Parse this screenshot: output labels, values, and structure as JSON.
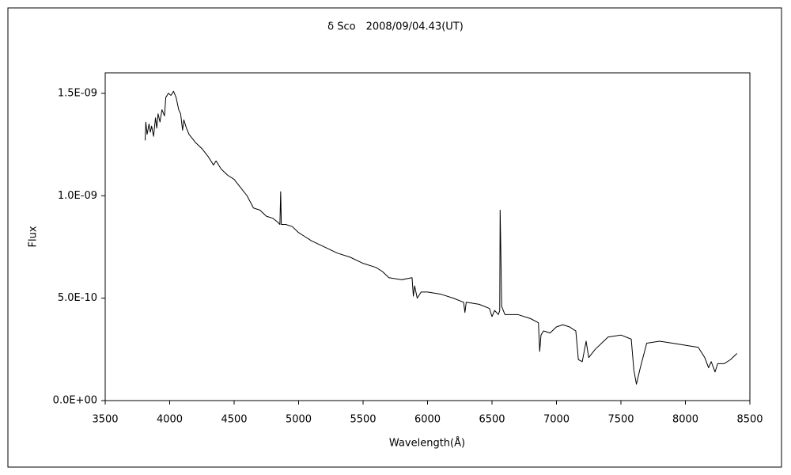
{
  "chart_data": {
    "type": "line",
    "title": "δ Sco　2008/09/04.43(UT)",
    "x_label": "Wavelength(Å)",
    "y_label": "Flux",
    "color": "#000000",
    "xlim": [
      3500,
      8500
    ],
    "xticks": [
      3500,
      4000,
      4500,
      5000,
      5500,
      6000,
      6500,
      7000,
      7500,
      8000,
      8500
    ],
    "ylim": [
      0,
      1.6e-09
    ],
    "yticks": [
      {
        "value": 0,
        "label": "0.0E+00"
      },
      {
        "value": 5e-10,
        "label": "5.0E-10"
      },
      {
        "value": 1e-09,
        "label": "1.0E-09"
      },
      {
        "value": 1.5e-09,
        "label": "1.5E-09"
      }
    ],
    "x": [
      3810,
      3815,
      3825,
      3840,
      3850,
      3860,
      3875,
      3890,
      3900,
      3910,
      3925,
      3940,
      3960,
      3970,
      3990,
      4010,
      4030,
      4050,
      4070,
      4085,
      4100,
      4110,
      4130,
      4150,
      4200,
      4250,
      4300,
      4340,
      4360,
      4400,
      4450,
      4500,
      4550,
      4600,
      4650,
      4700,
      4750,
      4800,
      4840,
      4855,
      4861,
      4866,
      4900,
      4950,
      5000,
      5050,
      5100,
      5200,
      5300,
      5400,
      5500,
      5600,
      5650,
      5700,
      5800,
      5880,
      5890,
      5900,
      5920,
      5950,
      6000,
      6100,
      6200,
      6280,
      6290,
      6300,
      6400,
      6480,
      6500,
      6520,
      6550,
      6560,
      6563,
      6568,
      6575,
      6600,
      6700,
      6800,
      6860,
      6870,
      6880,
      6900,
      6950,
      7000,
      7050,
      7100,
      7150,
      7170,
      7200,
      7230,
      7250,
      7300,
      7400,
      7500,
      7580,
      7600,
      7620,
      7650,
      7700,
      7800,
      7900,
      8000,
      8100,
      8150,
      8180,
      8200,
      8230,
      8250,
      8300,
      8350,
      8400
    ],
    "values": [
      1.27e-09,
      1.36e-09,
      1.3e-09,
      1.35e-09,
      1.31e-09,
      1.34e-09,
      1.29e-09,
      1.38e-09,
      1.33e-09,
      1.4e-09,
      1.36e-09,
      1.42e-09,
      1.39e-09,
      1.48e-09,
      1.5e-09,
      1.49e-09,
      1.51e-09,
      1.48e-09,
      1.42e-09,
      1.4e-09,
      1.32e-09,
      1.37e-09,
      1.33e-09,
      1.3e-09,
      1.26e-09,
      1.23e-09,
      1.19e-09,
      1.15e-09,
      1.17e-09,
      1.13e-09,
      1.1e-09,
      1.08e-09,
      1.04e-09,
      1e-09,
      9.4e-10,
      9.3e-10,
      9e-10,
      8.9e-10,
      8.7e-10,
      8.6e-10,
      1.02e-09,
      8.6e-10,
      8.6e-10,
      8.5e-10,
      8.2e-10,
      8e-10,
      7.8e-10,
      7.5e-10,
      7.2e-10,
      7e-10,
      6.7e-10,
      6.5e-10,
      6.3e-10,
      6e-10,
      5.9e-10,
      6e-10,
      5.1e-10,
      5.6e-10,
      5e-10,
      5.3e-10,
      5.3e-10,
      5.2e-10,
      5e-10,
      4.8e-10,
      4.3e-10,
      4.8e-10,
      4.7e-10,
      4.5e-10,
      4.1e-10,
      4.4e-10,
      4.2e-10,
      4.4e-10,
      9.3e-10,
      7.5e-10,
      4.6e-10,
      4.2e-10,
      4.2e-10,
      4e-10,
      3.8e-10,
      2.4e-10,
      3.2e-10,
      3.4e-10,
      3.3e-10,
      3.6e-10,
      3.7e-10,
      3.6e-10,
      3.4e-10,
      2e-10,
      1.9e-10,
      2.9e-10,
      2.1e-10,
      2.5e-10,
      3.1e-10,
      3.2e-10,
      3e-10,
      1.5e-10,
      8e-11,
      1.6e-10,
      2.8e-10,
      2.9e-10,
      2.8e-10,
      2.7e-10,
      2.6e-10,
      2.1e-10,
      1.6e-10,
      1.9e-10,
      1.4e-10,
      1.8e-10,
      1.8e-10,
      2e-10,
      2.3e-10
    ]
  }
}
